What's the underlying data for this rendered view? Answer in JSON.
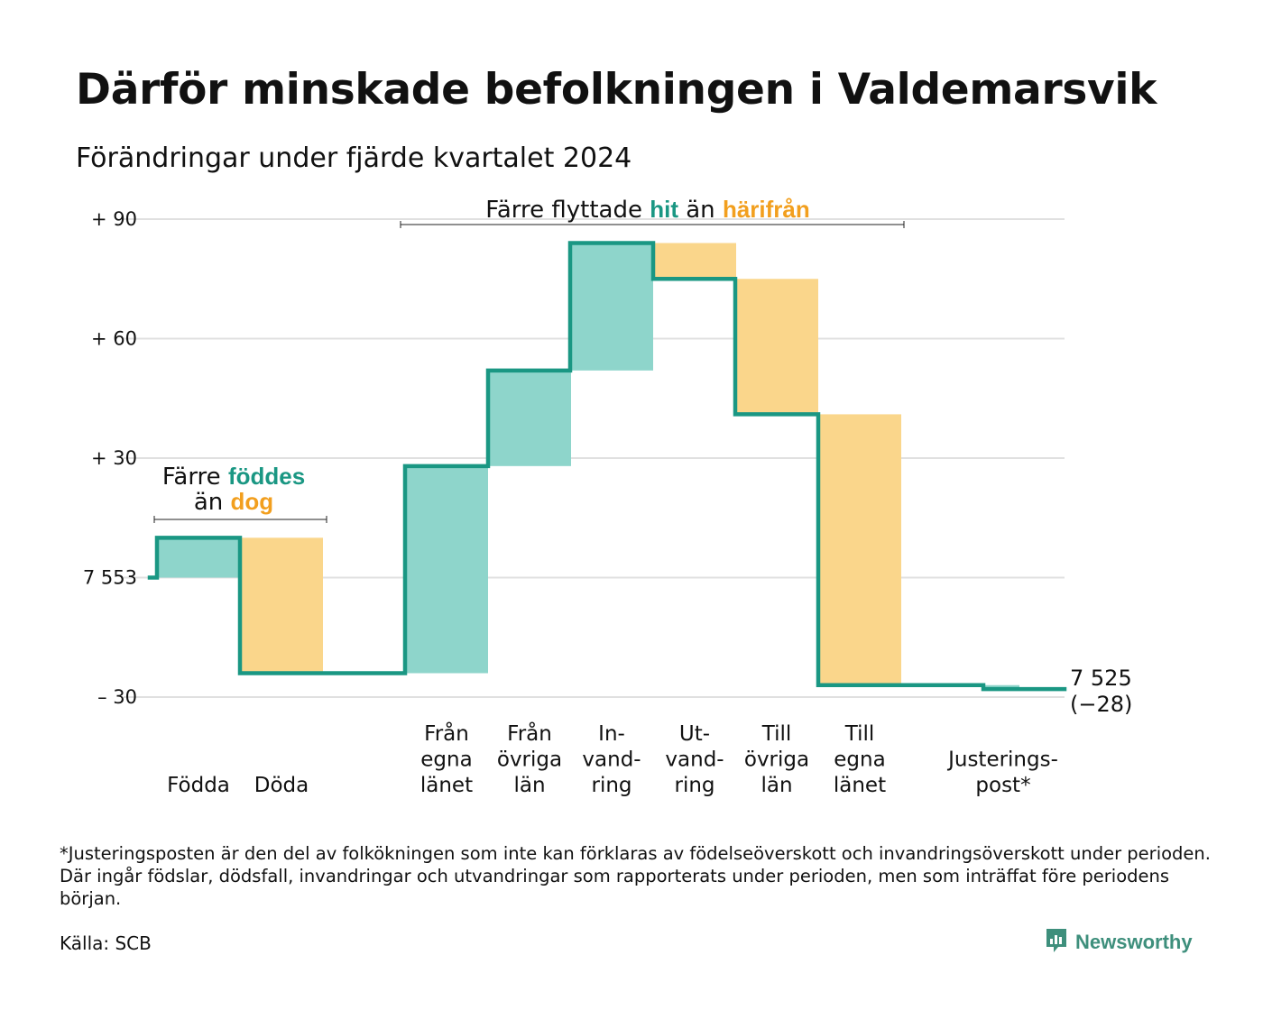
{
  "title": "Därför minskade befolkningen i Valdemarsvik",
  "subtitle": "Förändringar under fjärde kvartalet 2024",
  "colors": {
    "inflow": "#8ed5cb",
    "outflow": "#fad68b",
    "line": "#1a9783",
    "grid": "#e0e0e0",
    "hit_text": "#1a9783",
    "harifran_text": "#f29f1e"
  },
  "chart_data": {
    "type": "waterfall",
    "start_population": 7553,
    "end_population": 7525,
    "net_change": -28,
    "y_ticks": [
      {
        "value": 90,
        "label": "+ 90"
      },
      {
        "value": 60,
        "label": "+ 60"
      },
      {
        "value": 30,
        "label": "+ 30"
      },
      {
        "value": 0,
        "label": "7 553"
      },
      {
        "value": -30,
        "label": "– 30"
      }
    ],
    "ylim": [
      -30,
      90
    ],
    "steps": [
      {
        "label": [
          "Födda"
        ],
        "value": 10,
        "kind": "inflow"
      },
      {
        "label": [
          "Döda"
        ],
        "value": -34,
        "kind": "outflow"
      },
      {
        "label": [
          "Från",
          "egna",
          "länet"
        ],
        "value": 52,
        "kind": "inflow"
      },
      {
        "label": [
          "Från",
          "övriga",
          "län"
        ],
        "value": 24,
        "kind": "inflow"
      },
      {
        "label": [
          "In-",
          "vand-",
          "ring"
        ],
        "value": 32,
        "kind": "inflow"
      },
      {
        "label": [
          "Ut-",
          "vand-",
          "ring"
        ],
        "value": -9,
        "kind": "outflow"
      },
      {
        "label": [
          "Till",
          "övriga",
          "län"
        ],
        "value": -34,
        "kind": "outflow"
      },
      {
        "label": [
          "Till",
          "egna",
          "länet"
        ],
        "value": -68,
        "kind": "outflow"
      },
      {
        "label": [
          "Justerings-",
          "post*"
        ],
        "value": -1,
        "kind": "adjustment"
      }
    ],
    "end_label": [
      "7 525",
      "(−28)"
    ],
    "annotations": {
      "births_deaths": {
        "line1": "Färre",
        "hit_word": "föddes",
        "line2_pre": "än",
        "out_word": "dog"
      },
      "migration": {
        "pre": "Färre flyttade",
        "hit_word": "hit",
        "mid": "än",
        "out_word": "härifrån"
      }
    }
  },
  "footnote": "*Justeringsposten är den del av folkökningen som inte kan förklaras av födelseöverskott och invandringsöverskott under perioden. Där ingår födslar, dödsfall, invandringar och utvandringar som rapporterats under perioden, men som inträffat före periodens början.",
  "source": "Källa: SCB",
  "brand": "Newsworthy",
  "brand_icon": "newsworthy-logo-icon"
}
